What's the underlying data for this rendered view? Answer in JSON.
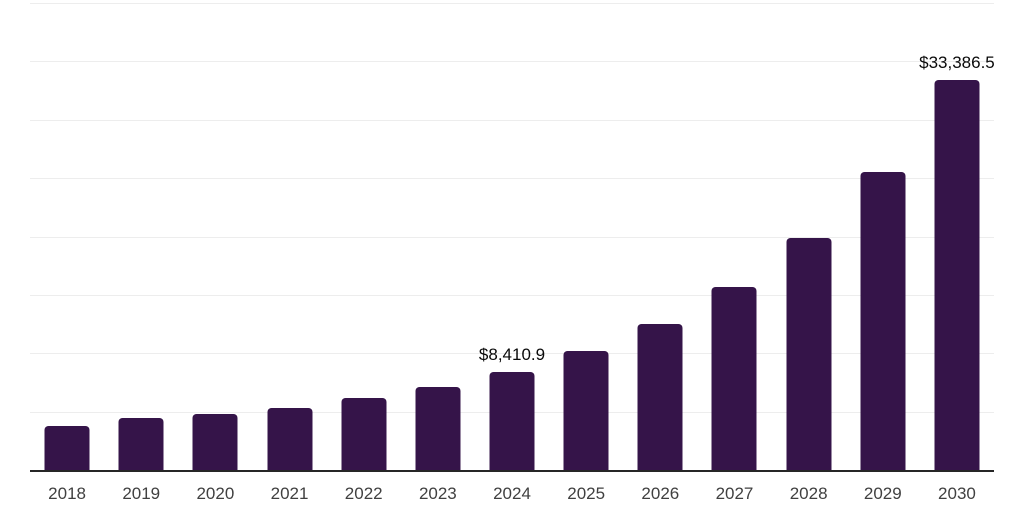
{
  "chart_data": {
    "type": "bar",
    "title": "",
    "xlabel": "",
    "ylabel": "",
    "legend": "none",
    "grid": "horizontal",
    "categories": [
      "2018",
      "2019",
      "2020",
      "2021",
      "2022",
      "2023",
      "2024",
      "2025",
      "2026",
      "2027",
      "2028",
      "2029",
      "2030"
    ],
    "values": [
      3770,
      4480,
      4800,
      5330,
      6140,
      7080,
      8410.9,
      10230,
      12500,
      15650,
      19850,
      25550,
      33386.5
    ],
    "data_labels": [
      null,
      null,
      null,
      null,
      null,
      null,
      "$8,410.9",
      null,
      null,
      null,
      null,
      null,
      "$33,386.5"
    ],
    "ylim": [
      0,
      40000
    ],
    "y_gridline_step": 5000,
    "y_axis_labels_visible": false,
    "colors": {
      "background": "#ffffff",
      "bar": "#351449",
      "axis_line": "#262626",
      "gridline": "#ededed",
      "tick_label": "#404040",
      "data_label": "#0a0a0a"
    }
  }
}
